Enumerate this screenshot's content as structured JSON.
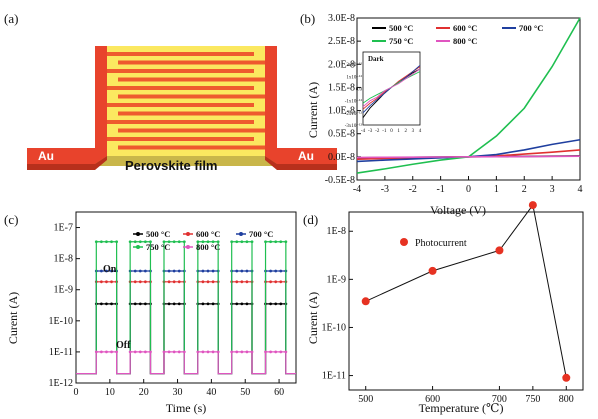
{
  "figure": {
    "panel_labels": [
      "(a)",
      "(b)",
      "(c)",
      "(d)"
    ],
    "schematic": {
      "electrode_label_left": "Au",
      "electrode_label_right": "Au",
      "film_label": "Perovskite film",
      "colors": {
        "electrode": "#e8432c",
        "film": "#fbe860",
        "finger": "#ee5a2e"
      }
    }
  },
  "chart_data": [
    {
      "id": "b",
      "type": "line",
      "xlabel": "Voltage (V)",
      "ylabel": "Current (A)",
      "xlim": [
        -4,
        4
      ],
      "ylim": [
        -5e-09,
        3e-08
      ],
      "xticks": [
        -4,
        -3,
        -2,
        -1,
        0,
        1,
        2,
        3,
        4
      ],
      "xtick_labels": [
        "-4",
        "-3",
        "-2",
        "-1",
        "0",
        "1",
        "2",
        "3",
        "4"
      ],
      "yticks": [
        -5e-09,
        0,
        5e-09,
        1e-08,
        1.5e-08,
        2e-08,
        2.5e-08,
        3e-08
      ],
      "ytick_labels": [
        "-0.5E-8",
        "0.0E-8",
        "0.5E-8",
        "1.0E-8",
        "1.5E-8",
        "2.0E-8",
        "2.5E-8",
        "3.0E-8"
      ],
      "legend_position": "top",
      "x": [
        -4,
        -3,
        -2,
        -1,
        0,
        1,
        2,
        3,
        4
      ],
      "series": [
        {
          "name": "500 °C",
          "color": "#000000",
          "values": [
            -2e-10,
            -1.5e-10,
            -1e-10,
            -5e-11,
            0,
            5e-11,
            1e-10,
            1.5e-10,
            2e-10
          ]
        },
        {
          "name": "600 °C",
          "color": "#e03030",
          "values": [
            -5e-10,
            -3.5e-10,
            -2.2e-10,
            -1e-10,
            0,
            2e-10,
            6e-10,
            1e-09,
            1.5e-09
          ]
        },
        {
          "name": "700 °C",
          "color": "#1f3f9f",
          "values": [
            -1e-09,
            -7e-10,
            -4.5e-10,
            -2e-10,
            0,
            5e-10,
            1.5e-09,
            2.7e-09,
            3.7e-09
          ]
        },
        {
          "name": "750 °C",
          "color": "#1fbf50",
          "values": [
            -3.5e-09,
            -2.6e-09,
            -1.6e-09,
            -7e-10,
            0,
            4.5e-09,
            1.05e-08,
            1.95e-08,
            3e-08
          ]
        },
        {
          "name": "800 °C",
          "color": "#e055c0",
          "values": [
            -1.5e-10,
            -1e-10,
            -7e-11,
            -3e-11,
            0,
            3e-11,
            7e-11,
            1e-10,
            1.5e-10
          ]
        }
      ],
      "inset": {
        "label": "Dark",
        "xlim": [
          -4,
          4
        ],
        "ylim": [
          -3e-12,
          3e-12
        ],
        "xticks": [
          -4,
          -3,
          -2,
          -1,
          0,
          1,
          2,
          3,
          4
        ],
        "xtick_labels": [
          "-4",
          "-3",
          "-2",
          "-1",
          "0",
          "1",
          "2",
          "3",
          "4"
        ],
        "yticks": [
          -3e-12,
          -2e-12,
          -1e-12,
          0,
          1e-12,
          2e-12
        ],
        "ytick_labels": [
          "-3x10⁻¹²",
          "-2x10⁻¹²",
          "-1x10⁻¹²",
          "0.0",
          "1x10⁻¹²",
          "2x10⁻¹²"
        ],
        "x": [
          -4,
          -3,
          -2,
          -1,
          0,
          1,
          2,
          3,
          4
        ],
        "series": [
          {
            "name": "500 °C",
            "color": "#000000",
            "values": [
              -2.4e-12,
              -1.6e-12,
              -1e-12,
              -4e-13,
              1e-13,
              5e-13,
              9e-13,
              1.3e-12,
              1.6e-12
            ]
          },
          {
            "name": "600 °C",
            "color": "#e03030",
            "values": [
              -1.7e-12,
              -1.2e-12,
              -8e-13,
              -3e-13,
              1e-13,
              6e-13,
              1e-12,
              1.4e-12,
              1.8e-12
            ]
          },
          {
            "name": "700 °C",
            "color": "#1f3f9f",
            "values": [
              -2e-12,
              -1.4e-12,
              -9e-13,
              -4e-13,
              1e-13,
              5e-13,
              9e-13,
              1.4e-12,
              1.9e-12
            ]
          },
          {
            "name": "750 °C",
            "color": "#1fbf50",
            "values": [
              -1.2e-12,
              -8e-13,
              -5e-13,
              -2e-13,
              1e-13,
              5e-13,
              8e-13,
              1.1e-12,
              1.4e-12
            ]
          },
          {
            "name": "800 °C",
            "color": "#e055c0",
            "values": [
              -1.5e-12,
              -1e-12,
              -7e-13,
              -2e-13,
              1e-13,
              4e-13,
              8e-13,
              1.2e-12,
              1.6e-12
            ]
          }
        ]
      }
    },
    {
      "id": "c",
      "type": "line",
      "xlabel": "Time (s)",
      "ylabel": "Curent (A)",
      "xlim": [
        0,
        65
      ],
      "ylim_log10": [
        -12,
        -6.5
      ],
      "y_scale": "log",
      "xticks": [
        0,
        10,
        20,
        30,
        40,
        50,
        60
      ],
      "xtick_labels": [
        "0",
        "10",
        "20",
        "30",
        "40",
        "50",
        "60"
      ],
      "yticks_log10": [
        -12,
        -11,
        -10,
        -9,
        -8,
        -7
      ],
      "ytick_labels": [
        "1E-12",
        "1E-11",
        "1E-10",
        "1E-9",
        "1E-8",
        "1E-7"
      ],
      "legend_position": "top",
      "on_intervals": [
        [
          6,
          12
        ],
        [
          16,
          22
        ],
        [
          26,
          32
        ],
        [
          36,
          42
        ],
        [
          46,
          52
        ],
        [
          56,
          62
        ]
      ],
      "annotations": [
        "On",
        "Off"
      ],
      "series": [
        {
          "name": "500 °C",
          "color": "#000000",
          "on_value": 3.5e-10,
          "off_value": 2e-12
        },
        {
          "name": "600 °C",
          "color": "#e03030",
          "on_value": 1.8e-09,
          "off_value": 2e-12
        },
        {
          "name": "700 °C",
          "color": "#1f3f9f",
          "on_value": 4e-09,
          "off_value": 2e-12
        },
        {
          "name": "750 °C",
          "color": "#1fbf50",
          "on_value": 3.5e-08,
          "off_value": 2e-12
        },
        {
          "name": "800 °C",
          "color": "#e055c0",
          "on_value": 1e-11,
          "off_value": 2e-12
        }
      ]
    },
    {
      "id": "d",
      "type": "line",
      "xlabel": "Temperature (℃)",
      "ylabel": "Curent (A)",
      "y_scale": "log",
      "xlim": [
        475,
        825
      ],
      "ylim_log10": [
        -11.3,
        -7.6
      ],
      "xticks": [
        500,
        600,
        700,
        750,
        800
      ],
      "xtick_labels": [
        "500",
        "600",
        "700",
        "750",
        "800"
      ],
      "yticks_log10": [
        -11,
        -10,
        -9,
        -8
      ],
      "ytick_labels": [
        "1E-11",
        "1E-10",
        "1E-9",
        "1E-8"
      ],
      "legend_position": "top-left",
      "series": [
        {
          "name": "Photocurrent",
          "color": "#e63222",
          "x": [
            500,
            600,
            700,
            750,
            800
          ],
          "values": [
            3.5e-10,
            1.5e-09,
            4e-09,
            3.5e-08,
            9e-12
          ]
        }
      ]
    }
  ]
}
